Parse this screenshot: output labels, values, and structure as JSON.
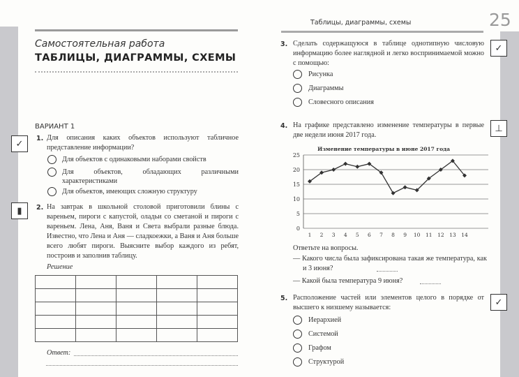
{
  "left": {
    "subtitle": "Самостоятельная работа",
    "title": "ТАБЛИЦЫ, ДИАГРАММЫ, СХЕМЫ",
    "variant": "ВАРИАНТ 1",
    "q1": {
      "num": "1.",
      "text": "Для описания каких объектов используют табличное представление информации?",
      "options": [
        "Для объектов с одинаковыми наборами свойств",
        "Для объектов, обладающих различными характеристиками",
        "Для объектов, имеющих сложную структуру"
      ],
      "icon": "test-check-icon"
    },
    "q2": {
      "num": "2.",
      "text": "На завтрак в школьной столовой приготовили блины с вареньем, пироги с капустой, оладьи со сметаной и пироги с вареньем. Лена, Аня, Ваня и Света выбрали разные блюда. Известно, что Лена и Аня — сладкоежки, а Ваня и Аня больше всего любят пироги. Выясните выбор каждого из ребят, построив и заполнив таблицу.",
      "icon": "book-icon",
      "solution_label": "Решение",
      "answer_label": "Ответ:"
    }
  },
  "right": {
    "header": "Таблицы, диаграммы, схемы",
    "page_number": "25",
    "q3": {
      "num": "3.",
      "text": "Сделать содержащуюся в таблице однотипную числовую информацию более наглядной и легко воспринимаемой можно с помощью:",
      "options": [
        "Рисунка",
        "Диаграммы",
        "Словесного описания"
      ],
      "icon": "test-check-icon"
    },
    "q4": {
      "num": "4.",
      "text": "На графике представлено изменение температуры в первые две недели июня 2017 года.",
      "icon": "thermometer-icon",
      "prompt": "Ответьте на вопросы.",
      "sub1": "— Какого числа была зафиксирована такая же температура, как и 3 июня?",
      "sub2": "— Какой была температура 9 июня?"
    },
    "q5": {
      "num": "5.",
      "text": "Расположение частей или элементов целого в порядке от высшего к низшему называется:",
      "options": [
        "Иерархией",
        "Системой",
        "Графом",
        "Структурой"
      ],
      "icon": "test-check-icon"
    }
  },
  "chart_data": {
    "type": "line",
    "title": "Изменение температуры в июне 2017 года",
    "x": [
      1,
      2,
      3,
      4,
      5,
      6,
      7,
      8,
      9,
      10,
      11,
      12,
      13,
      14
    ],
    "values": [
      16,
      19,
      20,
      22,
      21,
      22,
      19,
      12,
      14,
      13,
      17,
      20,
      23,
      18
    ],
    "yticks": [
      0,
      5,
      10,
      15,
      20,
      25
    ],
    "ylim": [
      0,
      25
    ],
    "grid": true,
    "color": "#333333"
  }
}
